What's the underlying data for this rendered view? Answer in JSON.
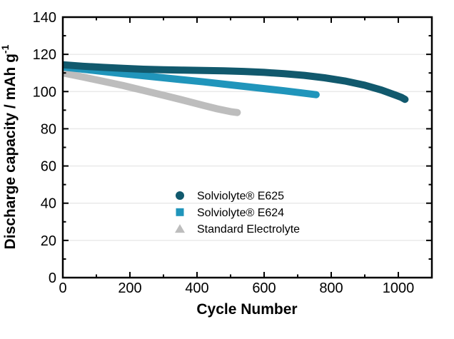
{
  "chart_data": {
    "type": "scatter",
    "title": "",
    "xlabel": "Cycle Number",
    "ylabel_text": "Discharge capacity / mAh g",
    "ylabel_superscript": "-1",
    "xlim": [
      0,
      1100
    ],
    "ylim": [
      0,
      140
    ],
    "x_major_ticks": [
      0,
      200,
      400,
      600,
      800,
      1000
    ],
    "x_minor_ticks": [
      100,
      300,
      500,
      700,
      900
    ],
    "y_major_ticks": [
      0,
      20,
      40,
      60,
      80,
      100,
      120,
      140
    ],
    "y_minor_ticks": [
      10,
      30,
      50,
      70,
      90,
      110,
      130
    ],
    "grid": "horizontal gridlines at y majors only",
    "legend_position": "inside, lower center",
    "colors": {
      "frame": "#000000",
      "gridline": "#e8e8e8",
      "text": "#000000"
    },
    "series": [
      {
        "name": "Solviolyte® E625",
        "marker": "circle",
        "color": "#11596d",
        "points": [
          [
            0,
            114.4
          ],
          [
            60,
            113.6
          ],
          [
            120,
            113.0
          ],
          [
            180,
            112.5
          ],
          [
            240,
            112.0
          ],
          [
            300,
            111.7
          ],
          [
            360,
            111.5
          ],
          [
            420,
            111.3
          ],
          [
            480,
            111.1
          ],
          [
            540,
            110.8
          ],
          [
            600,
            110.3
          ],
          [
            660,
            109.6
          ],
          [
            720,
            108.7
          ],
          [
            780,
            107.4
          ],
          [
            840,
            105.7
          ],
          [
            900,
            103.4
          ],
          [
            950,
            100.8
          ],
          [
            990,
            98.2
          ],
          [
            1010,
            96.8
          ],
          [
            1020,
            95.8
          ]
        ]
      },
      {
        "name": "Solviolyte® E624",
        "marker": "square",
        "color": "#2095bb",
        "points": [
          [
            0,
            113.2
          ],
          [
            60,
            112.0
          ],
          [
            120,
            110.8
          ],
          [
            180,
            109.6
          ],
          [
            240,
            108.5
          ],
          [
            300,
            107.4
          ],
          [
            360,
            106.3
          ],
          [
            420,
            105.2
          ],
          [
            480,
            104.0
          ],
          [
            540,
            102.8
          ],
          [
            600,
            101.6
          ],
          [
            660,
            100.4
          ],
          [
            710,
            99.3
          ],
          [
            755,
            98.3
          ]
        ]
      },
      {
        "name": "Standard Electrolyte",
        "marker": "triangle",
        "color": "#bdbdbd",
        "points": [
          [
            0,
            110.0
          ],
          [
            60,
            107.8
          ],
          [
            120,
            105.5
          ],
          [
            180,
            103.2
          ],
          [
            240,
            100.6
          ],
          [
            300,
            98.0
          ],
          [
            360,
            95.3
          ],
          [
            420,
            92.5
          ],
          [
            460,
            90.7
          ],
          [
            500,
            89.2
          ],
          [
            520,
            88.7
          ]
        ]
      }
    ]
  }
}
